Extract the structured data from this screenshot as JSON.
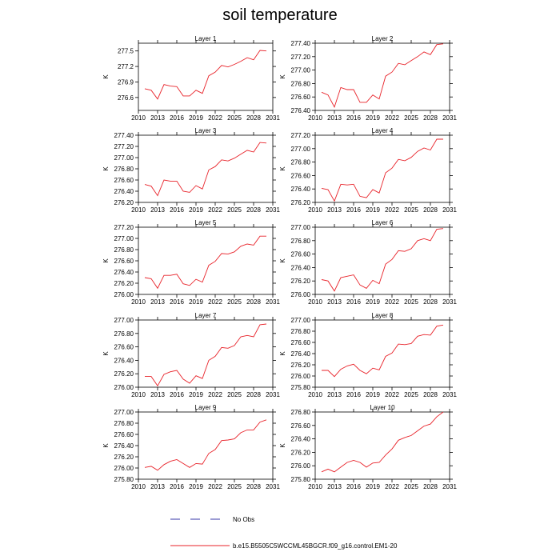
{
  "title": "soil temperature",
  "legend": {
    "obs_label": "No Obs",
    "model_label": "b.e15.B5505C5WCCML45BGCR.f09_g16.control.EM1-20",
    "model_color": "#e8232a",
    "obs_color": "#3a3aa8"
  },
  "chart_data": [
    {
      "type": "line",
      "title": "Layer 1",
      "ylabel": "K",
      "xlim": [
        2010,
        2031
      ],
      "xticks": [
        "2010",
        "2013",
        "2016",
        "2019",
        "2022",
        "2025",
        "2028",
        "2031"
      ],
      "ylim": [
        276.35,
        277.65
      ],
      "yticks": [
        "276.6",
        "276.9",
        "277.2",
        "277.5"
      ],
      "ytick_values": [
        276.6,
        276.9,
        277.2,
        277.5
      ],
      "series": [
        {
          "x": [
            2011,
            2012,
            2013,
            2014,
            2015,
            2016,
            2017,
            2018,
            2019,
            2020,
            2021,
            2022,
            2023,
            2024,
            2025,
            2026,
            2027,
            2028,
            2029,
            2030
          ],
          "values": [
            276.77,
            276.74,
            276.57,
            276.85,
            276.82,
            276.81,
            276.63,
            276.63,
            276.74,
            276.68,
            277.02,
            277.09,
            277.22,
            277.19,
            277.24,
            277.3,
            277.37,
            277.33,
            277.51,
            277.5
          ]
        }
      ]
    },
    {
      "type": "line",
      "title": "Layer 2",
      "ylabel": "K",
      "xlim": [
        2010,
        2031
      ],
      "xticks": [
        "2010",
        "2013",
        "2016",
        "2019",
        "2022",
        "2025",
        "2028",
        "2031"
      ],
      "ylim": [
        276.4,
        277.4
      ],
      "yticks": [
        "276.40",
        "276.60",
        "276.80",
        "277.00",
        "277.20",
        "277.40"
      ],
      "ytick_values": [
        276.4,
        276.6,
        276.8,
        277.0,
        277.2,
        277.4
      ],
      "series": [
        {
          "x": [
            2011,
            2012,
            2013,
            2014,
            2015,
            2016,
            2017,
            2018,
            2019,
            2020,
            2021,
            2022,
            2023,
            2024,
            2025,
            2026,
            2027,
            2028,
            2029,
            2030
          ],
          "values": [
            276.67,
            276.63,
            276.45,
            276.74,
            276.71,
            276.71,
            276.52,
            276.52,
            276.63,
            276.57,
            276.91,
            276.97,
            277.1,
            277.08,
            277.14,
            277.2,
            277.27,
            277.23,
            277.38,
            277.39
          ]
        }
      ]
    },
    {
      "type": "line",
      "title": "Layer 3",
      "ylabel": "K",
      "xlim": [
        2010,
        2031
      ],
      "xticks": [
        "2010",
        "2013",
        "2016",
        "2019",
        "2022",
        "2025",
        "2028",
        "2031"
      ],
      "ylim": [
        276.2,
        277.4
      ],
      "yticks": [
        "276.20",
        "276.40",
        "276.60",
        "276.80",
        "277.00",
        "277.20",
        "277.40"
      ],
      "ytick_values": [
        276.2,
        276.4,
        276.6,
        276.8,
        277.0,
        277.2,
        277.4
      ],
      "series": [
        {
          "x": [
            2011,
            2012,
            2013,
            2014,
            2015,
            2016,
            2017,
            2018,
            2019,
            2020,
            2021,
            2022,
            2023,
            2024,
            2025,
            2026,
            2027,
            2028,
            2029,
            2030
          ],
          "values": [
            276.52,
            276.49,
            276.32,
            276.6,
            276.58,
            276.58,
            276.4,
            276.38,
            276.5,
            276.44,
            276.78,
            276.84,
            276.96,
            276.94,
            276.99,
            277.06,
            277.13,
            277.1,
            277.27,
            277.26
          ]
        }
      ]
    },
    {
      "type": "line",
      "title": "Layer 4",
      "ylabel": "K",
      "xlim": [
        2010,
        2031
      ],
      "xticks": [
        "2010",
        "2013",
        "2016",
        "2019",
        "2022",
        "2025",
        "2028",
        "2031"
      ],
      "ylim": [
        276.2,
        277.2
      ],
      "yticks": [
        "276.20",
        "276.40",
        "276.60",
        "276.80",
        "277.00",
        "277.20"
      ],
      "ytick_values": [
        276.2,
        276.4,
        276.6,
        276.8,
        277.0,
        277.2
      ],
      "series": [
        {
          "x": [
            2011,
            2012,
            2013,
            2014,
            2015,
            2016,
            2017,
            2018,
            2019,
            2020,
            2021,
            2022,
            2023,
            2024,
            2025,
            2026,
            2027,
            2028,
            2029,
            2030
          ],
          "values": [
            276.41,
            276.39,
            276.22,
            276.47,
            276.46,
            276.47,
            276.29,
            276.27,
            276.39,
            276.34,
            276.64,
            276.71,
            276.84,
            276.82,
            276.87,
            276.96,
            277.01,
            276.98,
            277.14,
            277.14
          ]
        }
      ]
    },
    {
      "type": "line",
      "title": "Layer 5",
      "ylabel": "K",
      "xlim": [
        2010,
        2031
      ],
      "xticks": [
        "2010",
        "2013",
        "2016",
        "2019",
        "2022",
        "2025",
        "2028",
        "2031"
      ],
      "ylim": [
        276.0,
        277.2
      ],
      "yticks": [
        "276.00",
        "276.20",
        "276.40",
        "276.60",
        "276.80",
        "277.00",
        "277.20"
      ],
      "ytick_values": [
        276.0,
        276.2,
        276.4,
        276.6,
        276.8,
        277.0,
        277.2
      ],
      "series": [
        {
          "x": [
            2011,
            2012,
            2013,
            2014,
            2015,
            2016,
            2017,
            2018,
            2019,
            2020,
            2021,
            2022,
            2023,
            2024,
            2025,
            2026,
            2027,
            2028,
            2029,
            2030
          ],
          "values": [
            276.3,
            276.28,
            276.11,
            276.34,
            276.34,
            276.36,
            276.19,
            276.16,
            276.27,
            276.22,
            276.52,
            276.59,
            276.73,
            276.72,
            276.76,
            276.86,
            276.9,
            276.88,
            277.04,
            277.04
          ]
        }
      ]
    },
    {
      "type": "line",
      "title": "Layer 6",
      "ylabel": "K",
      "xlim": [
        2010,
        2031
      ],
      "xticks": [
        "2010",
        "2013",
        "2016",
        "2019",
        "2022",
        "2025",
        "2028",
        "2031"
      ],
      "ylim": [
        276.0,
        277.0
      ],
      "yticks": [
        "276.00",
        "276.20",
        "276.40",
        "276.60",
        "276.80",
        "277.00"
      ],
      "ytick_values": [
        276.0,
        276.2,
        276.4,
        276.6,
        276.8,
        277.0
      ],
      "series": [
        {
          "x": [
            2011,
            2012,
            2013,
            2014,
            2015,
            2016,
            2017,
            2018,
            2019,
            2020,
            2021,
            2022,
            2023,
            2024,
            2025,
            2026,
            2027,
            2028,
            2029,
            2030
          ],
          "values": [
            276.22,
            276.2,
            276.05,
            276.25,
            276.27,
            276.29,
            276.14,
            276.09,
            276.21,
            276.16,
            276.45,
            276.52,
            276.65,
            276.64,
            276.68,
            276.8,
            276.83,
            276.8,
            276.97,
            276.98
          ]
        }
      ]
    },
    {
      "type": "line",
      "title": "Layer 7",
      "ylabel": "K",
      "xlim": [
        2010,
        2031
      ],
      "xticks": [
        "2010",
        "2013",
        "2016",
        "2019",
        "2022",
        "2025",
        "2028",
        "2031"
      ],
      "ylim": [
        276.0,
        277.0
      ],
      "yticks": [
        "276.00",
        "276.20",
        "276.40",
        "276.60",
        "276.80",
        "277.00"
      ],
      "ytick_values": [
        276.0,
        276.2,
        276.4,
        276.6,
        276.8,
        277.0
      ],
      "series": [
        {
          "x": [
            2011,
            2012,
            2013,
            2014,
            2015,
            2016,
            2017,
            2018,
            2019,
            2020,
            2021,
            2022,
            2023,
            2024,
            2025,
            2026,
            2027,
            2028,
            2029,
            2030
          ],
          "values": [
            276.16,
            276.16,
            276.02,
            276.19,
            276.23,
            276.25,
            276.12,
            276.06,
            276.17,
            276.13,
            276.4,
            276.46,
            276.59,
            276.58,
            276.62,
            276.75,
            276.77,
            276.75,
            276.93,
            276.94
          ]
        }
      ]
    },
    {
      "type": "line",
      "title": "Layer 8",
      "ylabel": "K",
      "xlim": [
        2010,
        2031
      ],
      "xticks": [
        "2010",
        "2013",
        "2016",
        "2019",
        "2022",
        "2025",
        "2028",
        "2031"
      ],
      "ylim": [
        275.8,
        277.0
      ],
      "yticks": [
        "275.80",
        "276.00",
        "276.20",
        "276.40",
        "276.60",
        "276.80",
        "277.00"
      ],
      "ytick_values": [
        275.8,
        276.0,
        276.2,
        276.4,
        276.6,
        276.8,
        277.0
      ],
      "series": [
        {
          "x": [
            2011,
            2012,
            2013,
            2014,
            2015,
            2016,
            2017,
            2018,
            2019,
            2020,
            2021,
            2022,
            2023,
            2024,
            2025,
            2026,
            2027,
            2028,
            2029,
            2030
          ],
          "values": [
            276.1,
            276.1,
            275.99,
            276.12,
            276.18,
            276.21,
            276.1,
            276.04,
            276.14,
            276.11,
            276.35,
            276.41,
            276.57,
            276.56,
            276.58,
            276.71,
            276.74,
            276.73,
            276.89,
            276.91
          ]
        }
      ]
    },
    {
      "type": "line",
      "title": "Layer 9",
      "ylabel": "K",
      "xlim": [
        2010,
        2031
      ],
      "xticks": [
        "2010",
        "2013",
        "2016",
        "2019",
        "2022",
        "2025",
        "2028",
        "2031"
      ],
      "ylim": [
        275.8,
        277.0
      ],
      "yticks": [
        "275.80",
        "276.00",
        "276.20",
        "276.40",
        "276.60",
        "276.80",
        "277.00"
      ],
      "ytick_values": [
        275.8,
        276.0,
        276.2,
        276.4,
        276.6,
        276.8,
        277.0
      ],
      "series": [
        {
          "x": [
            2011,
            2012,
            2013,
            2014,
            2015,
            2016,
            2017,
            2018,
            2019,
            2020,
            2021,
            2022,
            2023,
            2024,
            2025,
            2026,
            2027,
            2028,
            2029,
            2030
          ],
          "values": [
            276.01,
            276.03,
            275.96,
            276.06,
            276.12,
            276.15,
            276.08,
            276.01,
            276.08,
            276.07,
            276.26,
            276.33,
            276.49,
            276.5,
            276.52,
            276.63,
            276.68,
            276.68,
            276.82,
            276.86
          ]
        }
      ]
    },
    {
      "type": "line",
      "title": "Layer 10",
      "ylabel": "K",
      "xlim": [
        2010,
        2031
      ],
      "xticks": [
        "2010",
        "2013",
        "2016",
        "2019",
        "2022",
        "2025",
        "2028",
        "2031"
      ],
      "ylim": [
        275.8,
        276.8
      ],
      "yticks": [
        "275.80",
        "276.00",
        "276.20",
        "276.40",
        "276.60",
        "276.80"
      ],
      "ytick_values": [
        275.8,
        276.0,
        276.2,
        276.4,
        276.6,
        276.8
      ],
      "series": [
        {
          "x": [
            2011,
            2012,
            2013,
            2014,
            2015,
            2016,
            2017,
            2018,
            2019,
            2020,
            2021,
            2022,
            2023,
            2024,
            2025,
            2026,
            2027,
            2028,
            2029,
            2030
          ],
          "values": [
            275.91,
            275.95,
            275.91,
            275.98,
            276.05,
            276.08,
            276.05,
            275.98,
            276.04,
            276.05,
            276.16,
            276.25,
            276.38,
            276.42,
            276.45,
            276.52,
            276.59,
            276.62,
            276.73,
            276.8
          ]
        }
      ]
    }
  ]
}
